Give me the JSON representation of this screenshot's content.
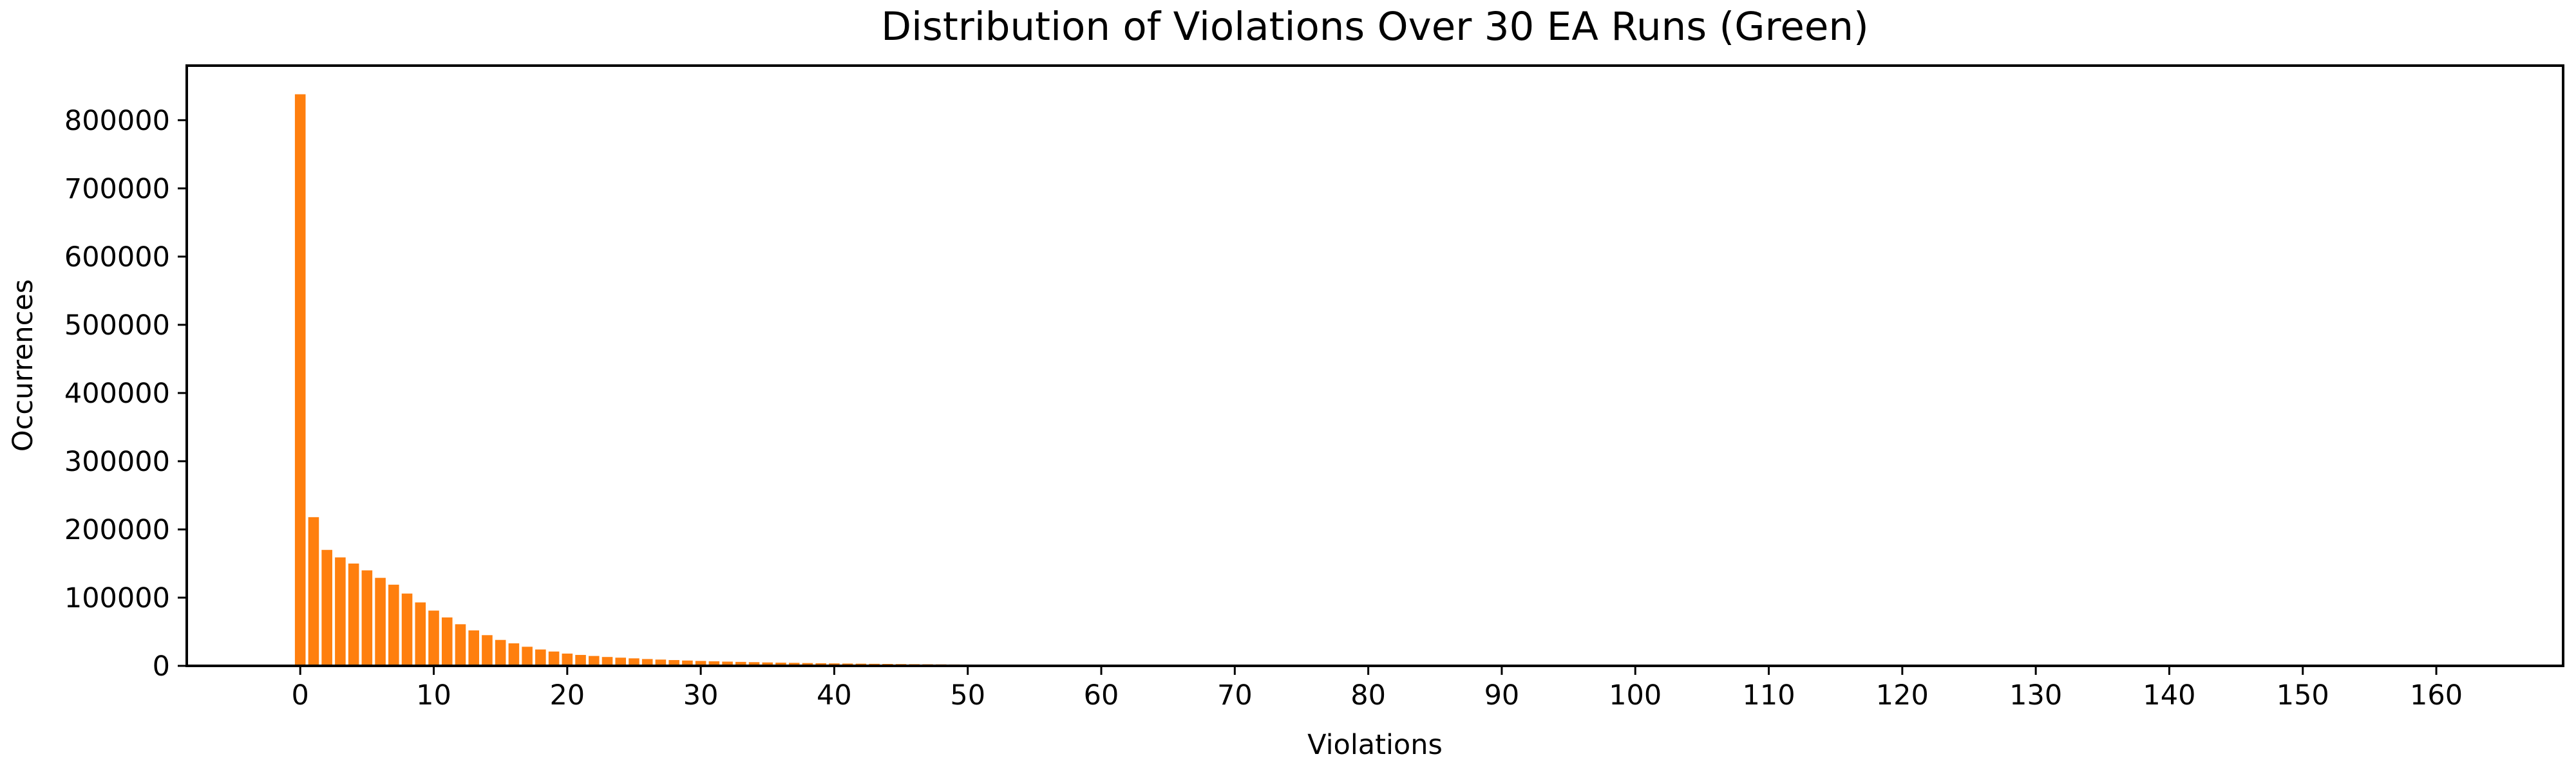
{
  "chart_data": {
    "type": "bar",
    "title": "Distribution of Violations Over 30 EA Runs (Green)",
    "xlabel": "Violations",
    "ylabel": "Occurrences",
    "bar_color": "#ff7f0e",
    "xlim": [
      -8.5,
      169.5
    ],
    "ylim": [
      0,
      880000
    ],
    "xticks": [
      0,
      10,
      20,
      30,
      40,
      50,
      60,
      70,
      80,
      90,
      100,
      110,
      120,
      130,
      140,
      150,
      160
    ],
    "xtick_labels": [
      "0",
      "10",
      "20",
      "30",
      "40",
      "50",
      "60",
      "70",
      "80",
      "90",
      "100",
      "110",
      "120",
      "130",
      "140",
      "150",
      "160"
    ],
    "yticks": [
      0,
      100000,
      200000,
      300000,
      400000,
      500000,
      600000,
      700000,
      800000
    ],
    "ytick_labels": [
      "0",
      "100000",
      "200000",
      "300000",
      "400000",
      "500000",
      "600000",
      "700000",
      "800000"
    ],
    "grid": false,
    "legend": false,
    "x": [
      0,
      1,
      2,
      3,
      4,
      5,
      6,
      7,
      8,
      9,
      10,
      11,
      12,
      13,
      14,
      15,
      16,
      17,
      18,
      19,
      20,
      21,
      22,
      23,
      24,
      25,
      26,
      27,
      28,
      29,
      30,
      31,
      32,
      33,
      34,
      35,
      36,
      37,
      38,
      39,
      40,
      41,
      42,
      43,
      44,
      45,
      46,
      47,
      48,
      49,
      50,
      51,
      52,
      53,
      54,
      55,
      56,
      57,
      58,
      59,
      60,
      61,
      62,
      63,
      64,
      65,
      66,
      67,
      68,
      69,
      70
    ],
    "values": [
      838000,
      218000,
      170000,
      159000,
      150000,
      140000,
      129000,
      119000,
      106000,
      93000,
      81000,
      71000,
      61000,
      52000,
      45000,
      38000,
      33000,
      28000,
      24000,
      21000,
      18000,
      16000,
      14500,
      13000,
      12000,
      11000,
      10000,
      9200,
      8500,
      7800,
      7200,
      6700,
      6200,
      5800,
      5400,
      5000,
      4700,
      4400,
      4100,
      3800,
      3600,
      3400,
      3200,
      3000,
      2800,
      2600,
      2450,
      2300,
      2150,
      2000,
      1900,
      1780,
      1660,
      1550,
      1450,
      1350,
      1260,
      1170,
      1090,
      1010,
      940,
      870,
      800,
      740,
      680,
      620,
      560,
      500,
      430,
      360,
      300
    ]
  }
}
